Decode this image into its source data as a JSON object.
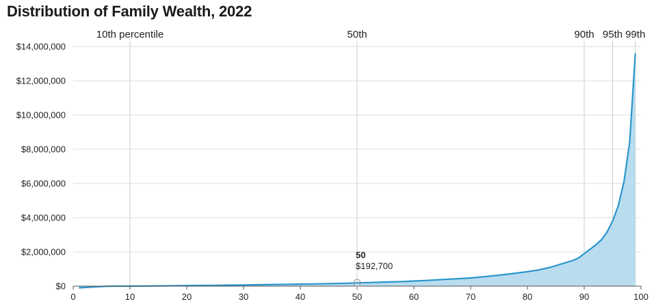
{
  "chart_data": {
    "type": "area",
    "title": "Distribution of Family Wealth, 2022",
    "xlabel": "",
    "ylabel": "",
    "xlim": [
      0,
      100
    ],
    "ylim": [
      0,
      14000000
    ],
    "x_ticks": [
      0,
      10,
      20,
      30,
      40,
      50,
      60,
      70,
      80,
      90,
      100
    ],
    "y_ticks": [
      0,
      2000000,
      4000000,
      6000000,
      8000000,
      10000000,
      12000000,
      14000000
    ],
    "y_tick_labels": [
      "$0",
      "$2,000,000",
      "$4,000,000",
      "$6,000,000",
      "$8,000,000",
      "$10,000,000",
      "$12,000,000",
      "$14,000,000"
    ],
    "grid": "horizontal",
    "colors": {
      "line": "#2a95cc",
      "fill": "#b9dcef",
      "grid": "#dddddd",
      "ref_line": "#cccccc"
    },
    "reference_lines": [
      {
        "x": 10,
        "label": "10th percentile"
      },
      {
        "x": 50,
        "label": "50th"
      },
      {
        "x": 90,
        "label": "90th"
      },
      {
        "x": 95,
        "label": "95th"
      },
      {
        "x": 99,
        "label": "99th"
      }
    ],
    "annotation": {
      "x": 50,
      "y": 192700,
      "title": "50",
      "value": "$192,700"
    },
    "series": [
      {
        "x": [
          1,
          2,
          3,
          4,
          5,
          6,
          8,
          10,
          12,
          15,
          18,
          20,
          22,
          25,
          28,
          30,
          32,
          35,
          38,
          40,
          42,
          45,
          48,
          50,
          52,
          55,
          58,
          60,
          62,
          65,
          68,
          70,
          72,
          75,
          78,
          80,
          82,
          84,
          86,
          87,
          88,
          89,
          90,
          91,
          92,
          93,
          94,
          95,
          96,
          97,
          98,
          99
        ],
        "values": [
          -100000,
          -80000,
          -60000,
          -40000,
          -20000,
          -5000,
          0,
          0,
          5000,
          15000,
          25000,
          35000,
          40000,
          50000,
          60000,
          70000,
          80000,
          95000,
          110000,
          120000,
          130000,
          150000,
          170000,
          192700,
          210000,
          240000,
          270000,
          300000,
          330000,
          390000,
          440000,
          480000,
          540000,
          640000,
          760000,
          850000,
          950000,
          1100000,
          1300000,
          1400000,
          1500000,
          1650000,
          1900000,
          2150000,
          2400000,
          2700000,
          3150000,
          3800000,
          4700000,
          6100000,
          8400000,
          13600000
        ]
      }
    ]
  }
}
